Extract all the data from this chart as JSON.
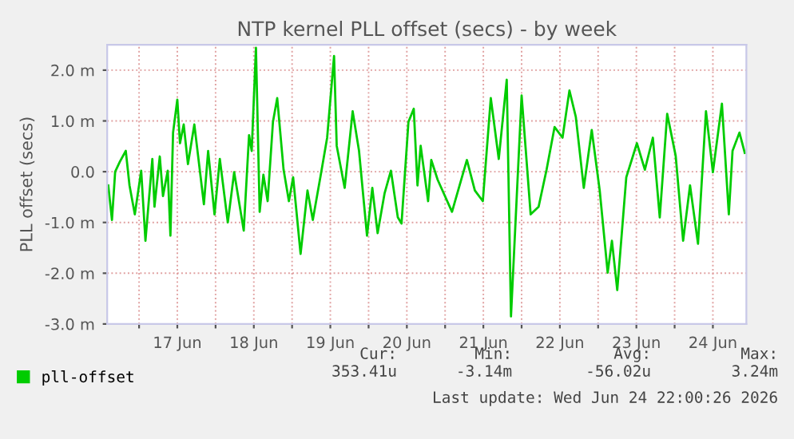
{
  "chart_data": {
    "type": "line",
    "title": "NTP kernel PLL offset (secs) - by week",
    "ylabel": "PLL offset (secs)",
    "x": [
      "2026-06-16T14:20",
      "2026-06-16T15:30",
      "2026-06-16T16:30",
      "2026-06-16T18:00",
      "2026-06-16T19:50",
      "2026-06-16T21:00",
      "2026-06-16T22:40",
      "2026-06-17T00:40",
      "2026-06-17T02:00",
      "2026-06-17T04:10",
      "2026-06-17T04:50",
      "2026-06-17T06:30",
      "2026-06-17T07:30",
      "2026-06-17T09:00",
      "2026-06-17T09:50",
      "2026-06-17T10:40",
      "2026-06-17T12:00",
      "2026-06-17T12:50",
      "2026-06-17T14:00",
      "2026-06-17T15:20",
      "2026-06-17T17:20",
      "2026-06-17T20:20",
      "2026-06-17T21:40",
      "2026-06-17T23:40",
      "2026-06-18T01:20",
      "2026-06-18T03:50",
      "2026-06-18T05:50",
      "2026-06-18T08:50",
      "2026-06-18T10:30",
      "2026-06-18T11:20",
      "2026-06-18T12:40",
      "2026-06-18T13:50",
      "2026-06-18T15:00",
      "2026-06-18T16:20",
      "2026-06-18T18:00",
      "2026-06-18T19:20",
      "2026-06-18T21:20",
      "2026-06-18T23:00",
      "2026-06-19T00:20",
      "2026-06-19T02:40",
      "2026-06-19T04:50",
      "2026-06-19T06:30",
      "2026-06-19T09:00",
      "2026-06-19T11:00",
      "2026-06-19T13:10",
      "2026-06-19T14:00",
      "2026-06-19T16:30",
      "2026-06-19T19:00",
      "2026-06-19T21:00",
      "2026-06-19T23:30",
      "2026-06-20T01:10",
      "2026-06-20T02:50",
      "2026-06-20T05:00",
      "2026-06-20T07:00",
      "2026-06-20T09:10",
      "2026-06-20T10:20",
      "2026-06-20T12:30",
      "2026-06-20T14:10",
      "2026-06-20T15:20",
      "2026-06-20T16:20",
      "2026-06-20T18:40",
      "2026-06-20T19:40",
      "2026-06-20T21:40",
      "2026-06-21T02:10",
      "2026-06-21T06:50",
      "2026-06-21T09:20",
      "2026-06-21T11:50",
      "2026-06-21T14:20",
      "2026-06-21T16:50",
      "2026-06-21T19:20",
      "2026-06-21T20:40",
      "2026-06-22T00:00",
      "2026-06-22T02:50",
      "2026-06-22T05:20",
      "2026-06-22T07:50",
      "2026-06-22T10:20",
      "2026-06-22T12:50",
      "2026-06-22T15:00",
      "2026-06-22T17:00",
      "2026-06-22T19:30",
      "2026-06-22T22:00",
      "2026-06-23T00:30",
      "2026-06-23T03:00",
      "2026-06-23T04:20",
      "2026-06-23T06:00",
      "2026-06-23T08:50",
      "2026-06-23T12:10",
      "2026-06-23T14:40",
      "2026-06-23T17:10",
      "2026-06-23T19:20",
      "2026-06-23T21:40",
      "2026-06-24T00:20",
      "2026-06-24T02:40",
      "2026-06-24T04:50",
      "2026-06-24T07:20",
      "2026-06-24T09:50",
      "2026-06-24T12:00",
      "2026-06-24T14:50",
      "2026-06-24T17:00",
      "2026-06-24T18:10",
      "2026-06-24T20:20",
      "2026-06-24T22:00"
    ],
    "series": [
      {
        "name": "pll-offset",
        "color": "#00cc00",
        "values": [
          -0.27,
          -0.95,
          0.0,
          0.2,
          0.41,
          -0.27,
          -0.84,
          0.02,
          -1.36,
          0.25,
          -0.69,
          0.3,
          -0.48,
          0.02,
          -1.26,
          0.77,
          1.42,
          0.56,
          0.93,
          0.15,
          0.93,
          -0.64,
          0.41,
          -0.84,
          0.25,
          -1.0,
          -0.01,
          -1.16,
          0.72,
          0.41,
          2.44,
          -0.79,
          -0.06,
          -0.58,
          0.98,
          1.45,
          0.04,
          -0.58,
          -0.11,
          -1.62,
          -0.37,
          -0.95,
          -0.06,
          0.67,
          2.28,
          0.51,
          -0.32,
          1.19,
          0.41,
          -1.26,
          -0.32,
          -1.21,
          -0.43,
          0.02,
          -0.9,
          -1.02,
          0.98,
          1.24,
          -0.27,
          0.51,
          -0.58,
          0.23,
          -0.16,
          -0.79,
          0.23,
          -0.37,
          -0.58,
          1.45,
          0.25,
          1.81,
          -2.85,
          1.5,
          -0.84,
          -0.69,
          0.04,
          0.88,
          0.67,
          1.6,
          1.08,
          -0.32,
          0.82,
          -0.37,
          -1.99,
          -1.36,
          -2.33,
          -0.11,
          0.56,
          0.04,
          0.67,
          -0.9,
          1.14,
          0.31,
          -1.36,
          -0.27,
          -1.42,
          1.19,
          -0.01,
          1.34,
          -0.84,
          0.41,
          0.77,
          0.37
        ]
      }
    ],
    "xlim": [
      "2026-06-16T14:00",
      "2026-06-24T22:30"
    ],
    "xticks": [
      {
        "value": "2026-06-17T00:00",
        "label": null
      },
      {
        "value": "2026-06-17T12:00",
        "label": "17 Jun"
      },
      {
        "value": "2026-06-18T00:00",
        "label": null
      },
      {
        "value": "2026-06-18T12:00",
        "label": "18 Jun"
      },
      {
        "value": "2026-06-19T00:00",
        "label": null
      },
      {
        "value": "2026-06-19T12:00",
        "label": "19 Jun"
      },
      {
        "value": "2026-06-20T00:00",
        "label": null
      },
      {
        "value": "2026-06-20T12:00",
        "label": "20 Jun"
      },
      {
        "value": "2026-06-21T00:00",
        "label": null
      },
      {
        "value": "2026-06-21T12:00",
        "label": "21 Jun"
      },
      {
        "value": "2026-06-22T00:00",
        "label": null
      },
      {
        "value": "2026-06-22T12:00",
        "label": "22 Jun"
      },
      {
        "value": "2026-06-23T00:00",
        "label": null
      },
      {
        "value": "2026-06-23T12:00",
        "label": "23 Jun"
      },
      {
        "value": "2026-06-24T00:00",
        "label": null
      },
      {
        "value": "2026-06-24T12:00",
        "label": "24 Jun"
      }
    ],
    "ylim": [
      -3.0,
      2.5
    ],
    "yticks": [
      {
        "value": -3,
        "label": "-3.0 m"
      },
      {
        "value": -2,
        "label": "-2.0 m"
      },
      {
        "value": -1,
        "label": "-1.0 m"
      },
      {
        "value": 0,
        "label": "0.0"
      },
      {
        "value": 1,
        "label": "1.0 m"
      },
      {
        "value": 2,
        "label": "2.0 m"
      }
    ],
    "grid": true,
    "legend": "bottom left",
    "line_style": "solid",
    "marker": "none",
    "annotations": [
      "Cur:",
      "Min:",
      "Avg:",
      "Max:",
      "353.41u",
      "-3.14m",
      "-56.02u",
      "3.24m",
      "Last update: Wed Jun 24 22:00:26 2026"
    ]
  }
}
